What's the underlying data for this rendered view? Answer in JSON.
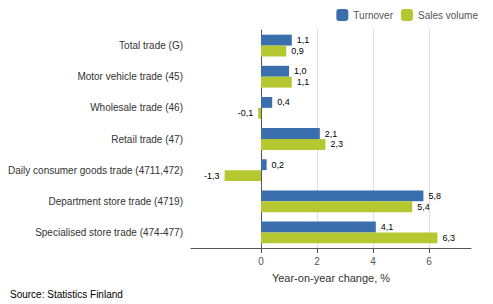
{
  "chart_data": {
    "type": "bar",
    "orientation": "horizontal",
    "categories": [
      "Specialised store trade (474-477)",
      "Department store trade (4719)",
      "Daily consumer goods trade (4711,472)",
      "Retail trade (47)",
      "Wholesale trade (46)",
      "Motor vehicle trade (45)",
      "Total trade (G)"
    ],
    "series": [
      {
        "name": "Turnover",
        "color": "#3b6ead",
        "values": [
          4.1,
          5.8,
          0.2,
          2.1,
          0.4,
          1.0,
          1.1
        ],
        "value_labels": [
          "4,1",
          "5,8",
          "0,2",
          "2,1",
          "0,4",
          "1,0",
          "1,1"
        ]
      },
      {
        "name": "Sales volume",
        "color": "#b5c832",
        "values": [
          6.3,
          5.4,
          -1.3,
          2.3,
          -0.1,
          1.1,
          0.9
        ],
        "value_labels": [
          "6,3",
          "5,4",
          "-1,3",
          "2,3",
          "-0,1",
          "1,1",
          "0,9"
        ]
      }
    ],
    "xlabel": "Year-on-year change, %",
    "xlim": [
      -2.5,
      7.5
    ],
    "xticks": [
      0,
      2,
      4,
      6
    ],
    "grid": true,
    "legend": "upper right",
    "data_labels": true,
    "source": "Source: Statistics Finland"
  }
}
